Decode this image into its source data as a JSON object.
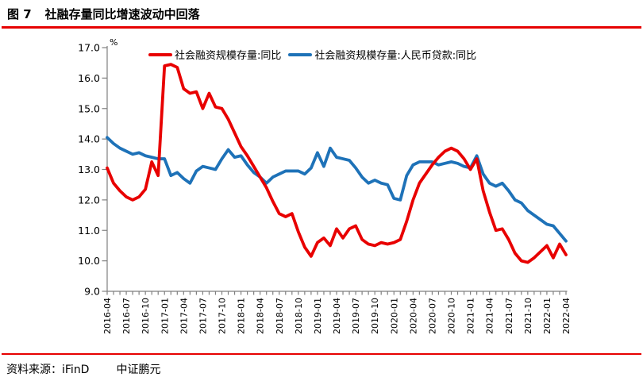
{
  "header": {
    "title_prefix": "图 7",
    "title": "社融存量同比增速波动中回落"
  },
  "footer": {
    "source_label": "资料来源：iFinD",
    "org": "中证鹏元"
  },
  "accent_rule_color": "#e60000",
  "chart_data": {
    "type": "line",
    "title": "社融存量同比增速波动中回落",
    "unit_label": "%",
    "grid": false,
    "legend_position": "top",
    "axis_color": "#808080",
    "ylim": [
      9.0,
      17.0
    ],
    "y_ticks": [
      "17.0",
      "16.0",
      "15.0",
      "14.0",
      "13.0",
      "12.0",
      "11.0",
      "10.0",
      "9.0"
    ],
    "x_tick_labels": [
      "2016-04",
      "2016-07",
      "2016-10",
      "2017-01",
      "2017-04",
      "2017-07",
      "2017-10",
      "2018-01",
      "2018-04",
      "2018-07",
      "2018-10",
      "2019-01",
      "2019-04",
      "2019-07",
      "2019-10",
      "2020-01",
      "2020-04",
      "2020-07",
      "2020-10",
      "2021-01",
      "2021-04",
      "2021-07",
      "2021-10",
      "2022-01",
      "2022-04"
    ],
    "x": [
      "2016-04",
      "2016-05",
      "2016-06",
      "2016-07",
      "2016-08",
      "2016-09",
      "2016-10",
      "2016-11",
      "2016-12",
      "2017-01",
      "2017-02",
      "2017-03",
      "2017-04",
      "2017-05",
      "2017-06",
      "2017-07",
      "2017-08",
      "2017-09",
      "2017-10",
      "2017-11",
      "2017-12",
      "2018-01",
      "2018-02",
      "2018-03",
      "2018-04",
      "2018-05",
      "2018-06",
      "2018-07",
      "2018-08",
      "2018-09",
      "2018-10",
      "2018-11",
      "2018-12",
      "2019-01",
      "2019-02",
      "2019-03",
      "2019-04",
      "2019-05",
      "2019-06",
      "2019-07",
      "2019-08",
      "2019-09",
      "2019-10",
      "2019-11",
      "2019-12",
      "2020-01",
      "2020-02",
      "2020-03",
      "2020-04",
      "2020-05",
      "2020-06",
      "2020-07",
      "2020-08",
      "2020-09",
      "2020-10",
      "2020-11",
      "2020-12",
      "2021-01",
      "2021-02",
      "2021-03",
      "2021-04",
      "2021-05",
      "2021-06",
      "2021-07",
      "2021-08",
      "2021-09",
      "2021-10",
      "2021-11",
      "2021-12",
      "2022-01",
      "2022-02",
      "2022-03",
      "2022-04"
    ],
    "series": [
      {
        "name": "社会融资规模存量:同比",
        "color": "#e80000",
        "values": [
          13.05,
          12.55,
          12.3,
          12.1,
          12.0,
          12.1,
          12.35,
          13.25,
          12.8,
          16.4,
          16.45,
          16.35,
          15.65,
          15.5,
          15.55,
          15.0,
          15.5,
          15.05,
          15.0,
          14.65,
          14.2,
          13.75,
          13.45,
          13.1,
          12.75,
          12.4,
          11.95,
          11.55,
          11.45,
          11.55,
          10.95,
          10.45,
          10.15,
          10.6,
          10.75,
          10.5,
          11.05,
          10.75,
          11.05,
          11.15,
          10.7,
          10.55,
          10.5,
          10.6,
          10.55,
          10.6,
          10.7,
          11.3,
          12.0,
          12.55,
          12.85,
          13.15,
          13.4,
          13.6,
          13.7,
          13.6,
          13.35,
          13.0,
          13.35,
          12.3,
          11.6,
          11.0,
          11.05,
          10.7,
          10.25,
          10.0,
          9.95,
          10.1,
          10.3,
          10.5,
          10.1,
          10.55,
          10.2
        ]
      },
      {
        "name": "社会融资规模存量:人民币贷款:同比",
        "color": "#1e72b8",
        "values": [
          14.05,
          13.85,
          13.7,
          13.6,
          13.5,
          13.55,
          13.45,
          13.4,
          13.35,
          13.35,
          12.8,
          12.9,
          12.7,
          12.55,
          12.95,
          13.1,
          13.05,
          13.0,
          13.35,
          13.65,
          13.4,
          13.45,
          13.15,
          12.9,
          12.75,
          12.55,
          12.75,
          12.85,
          12.95,
          12.95,
          12.95,
          12.85,
          13.05,
          13.55,
          13.1,
          13.7,
          13.4,
          13.35,
          13.3,
          13.05,
          12.75,
          12.55,
          12.65,
          12.55,
          12.5,
          12.05,
          12.0,
          12.8,
          13.15,
          13.25,
          13.25,
          13.25,
          13.15,
          13.2,
          13.25,
          13.2,
          13.1,
          13.05,
          13.45,
          12.85,
          12.55,
          12.45,
          12.55,
          12.3,
          12.0,
          11.9,
          11.65,
          11.5,
          11.35,
          11.2,
          11.15,
          10.9,
          10.65
        ]
      }
    ]
  }
}
